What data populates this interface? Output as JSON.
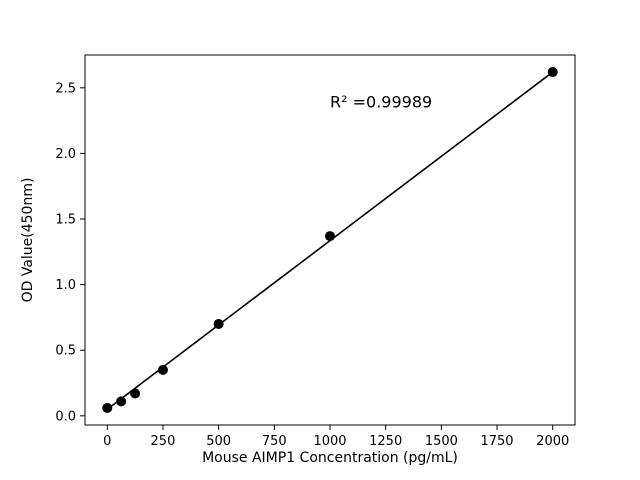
{
  "chart_data": {
    "type": "scatter",
    "title": "",
    "xlabel": "Mouse AIMP1 Concentration (pg/mL)",
    "ylabel": "OD Value(450nm)",
    "annotation": "R² =0.99989",
    "annotation_xy": [
      1000,
      2.35
    ],
    "x": [
      0,
      62.5,
      125,
      250,
      500,
      1000,
      2000
    ],
    "y": [
      0.06,
      0.11,
      0.17,
      0.35,
      0.7,
      1.37,
      2.62
    ],
    "fit_line": {
      "x": [
        0,
        2000
      ],
      "y": [
        0.05,
        2.62
      ]
    },
    "xlim": [
      -100,
      2100
    ],
    "ylim": [
      -0.07,
      2.75
    ],
    "x_ticks": [
      0,
      250,
      500,
      750,
      1000,
      1250,
      1500,
      1750,
      2000
    ],
    "x_tick_labels": [
      "0",
      "250",
      "500",
      "750",
      "1000",
      "1250",
      "1500",
      "1750",
      "2000"
    ],
    "y_ticks": [
      0.0,
      0.5,
      1.0,
      1.5,
      2.0,
      2.5
    ],
    "y_tick_labels": [
      "0.0",
      "0.5",
      "1.0",
      "1.5",
      "2.0",
      "2.5"
    ],
    "grid": false,
    "legend": null,
    "marker_color": "#000000",
    "line_color": "#000000",
    "frame_color": "#000000",
    "background": "#ffffff"
  }
}
